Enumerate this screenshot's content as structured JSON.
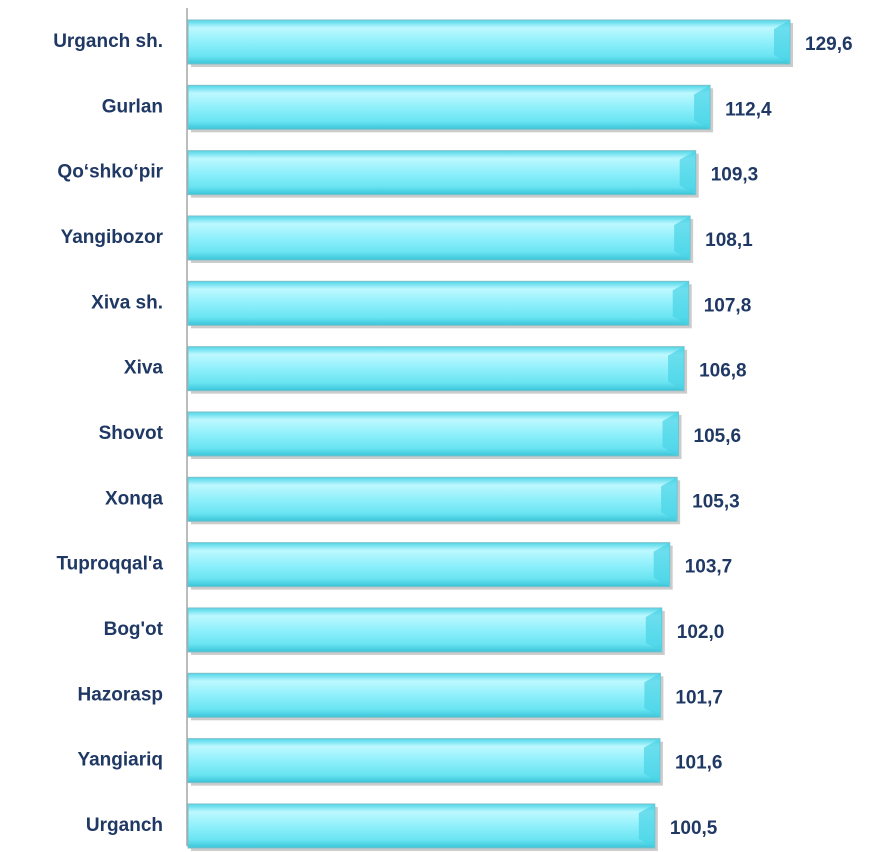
{
  "chart_data": {
    "type": "bar",
    "orientation": "horizontal",
    "categories": [
      "Urganch sh.",
      "Gurlan",
      "Qo‘shko‘pir",
      "Yangibozor",
      "Xiva sh.",
      "Xiva",
      "Shovot",
      "Xonqa",
      "Tuproqqal'a",
      "Bog'ot",
      "Hazorasp",
      "Yangiariq",
      "Urganch"
    ],
    "values": [
      129.6,
      112.4,
      109.3,
      108.1,
      107.8,
      106.8,
      105.6,
      105.3,
      103.7,
      102.0,
      101.7,
      101.6,
      100.5
    ],
    "value_labels": [
      "129,6",
      "112,4",
      "109,3",
      "108,1",
      "107,8",
      "106,8",
      "105,6",
      "105,3",
      "103,7",
      "102,0",
      "101,7",
      "101,6",
      "100,5"
    ],
    "color": "#7fecf7"
  }
}
